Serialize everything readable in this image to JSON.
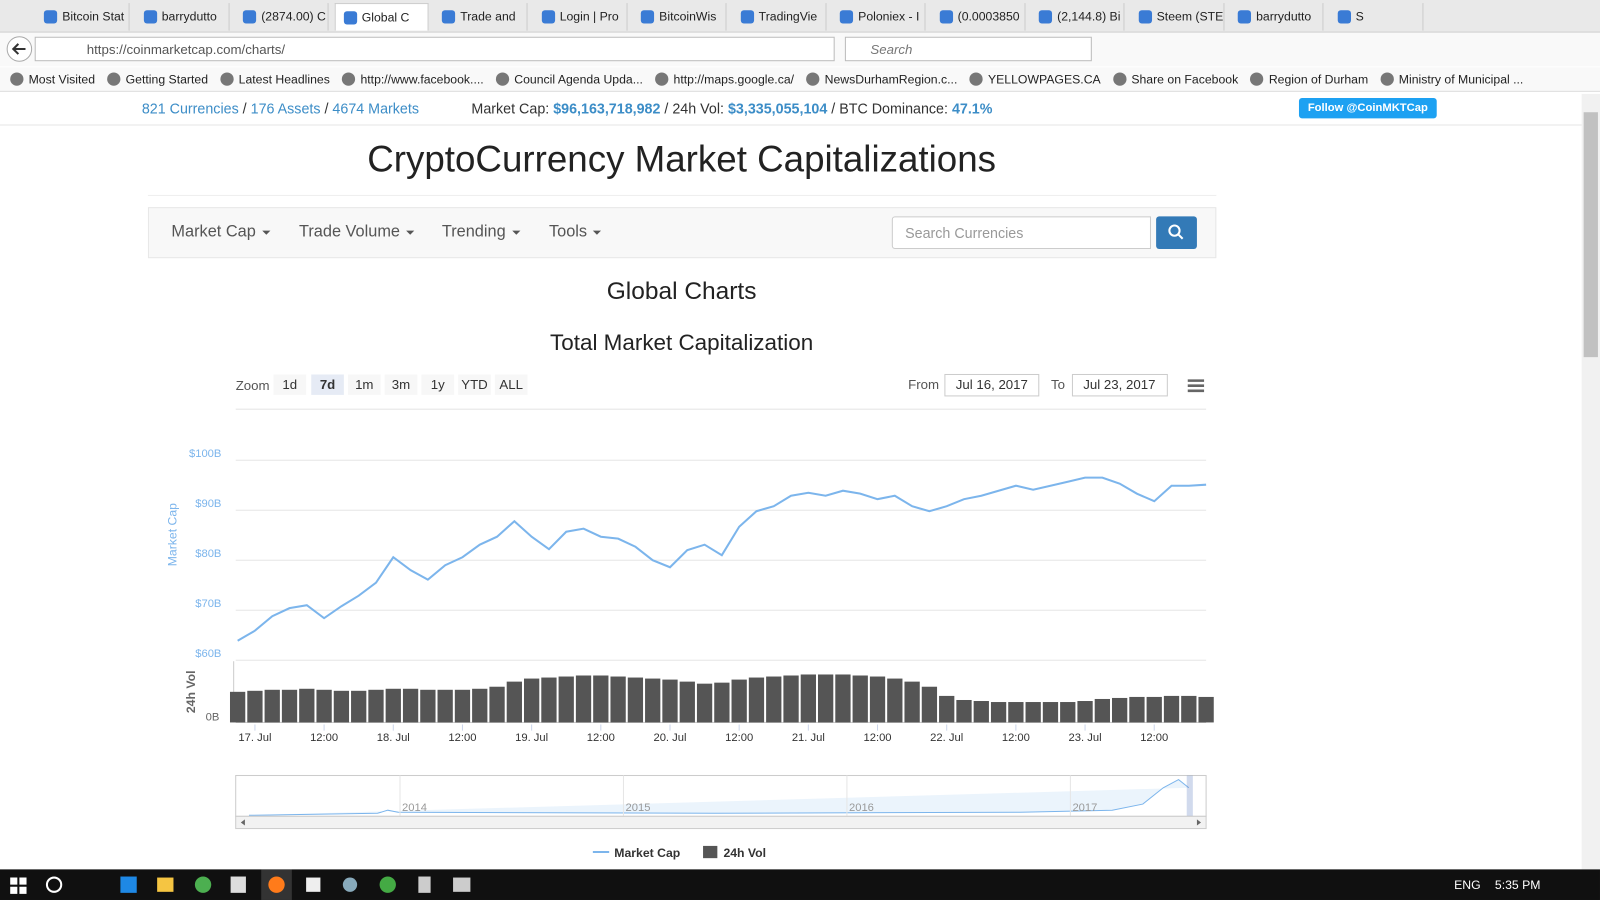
{
  "browser": {
    "tabs": [
      "Bitcoin Stat",
      "barrydutto",
      "(2874.00) C",
      "Global C",
      "Trade and",
      "Login | Pro",
      "BitcoinWis",
      "TradingVie",
      "Poloniex - I",
      "(0.0003850",
      "(2,144.8) Bi",
      "Steem (STE",
      "barrydutto",
      "S"
    ],
    "url": "https://coinmarketcap.com/charts/",
    "search_placeholder": "Search",
    "bookmarks": [
      "Most Visited",
      "Getting Started",
      "Latest Headlines",
      "http://www.facebook....",
      "Council Agenda Upda...",
      "http://maps.google.ca/",
      "NewsDurhamRegion.c...",
      "YELLOWPAGES.CA",
      "Share on Facebook",
      "Region of Durham",
      "Ministry of Municipal ..."
    ]
  },
  "stats": {
    "currencies": "821 Currencies",
    "assets": "176 Assets",
    "markets": "4674 Markets",
    "separator": "/",
    "market_cap_label": "Market Cap:",
    "market_cap": "$96,163,718,982",
    "vol_label": "24h Vol:",
    "vol": "$3,335,055,104",
    "dominance_label": "BTC Dominance:",
    "dominance": "47.1%",
    "follow": "Follow @CoinMKTCap"
  },
  "header": {
    "title": "CryptoCurrency Market Capitalizations"
  },
  "nav": {
    "items": [
      "Market Cap",
      "Trade Volume",
      "Trending",
      "Tools"
    ],
    "search_placeholder": "Search Currencies"
  },
  "page_title": "Global Charts",
  "chart_data": {
    "type": "line",
    "title": "Total Market Capitalization",
    "zoom_label": "Zoom",
    "zoom_buttons": [
      "1d",
      "7d",
      "1m",
      "3m",
      "1y",
      "YTD",
      "ALL"
    ],
    "zoom_selected": "7d",
    "from_label": "From",
    "from": "Jul 16, 2017",
    "to_label": "To",
    "to": "Jul 23, 2017",
    "ylabel": "Market Cap",
    "y2label": "24h Vol",
    "xlim": [
      "2017-07-16T20:40",
      "2017-07-23T21:00"
    ],
    "xticks": [
      {
        "value": "2017-07-17T00:00",
        "label": "17. Jul"
      },
      {
        "value": "2017-07-17T12:00",
        "label": "12:00"
      },
      {
        "value": "2017-07-18T00:00",
        "label": "18. Jul"
      },
      {
        "value": "2017-07-18T12:00",
        "label": "12:00"
      },
      {
        "value": "2017-07-19T00:00",
        "label": "19. Jul"
      },
      {
        "value": "2017-07-19T12:00",
        "label": "12:00"
      },
      {
        "value": "2017-07-20T00:00",
        "label": "20. Jul"
      },
      {
        "value": "2017-07-20T12:00",
        "label": "12:00"
      },
      {
        "value": "2017-07-21T00:00",
        "label": "21. Jul"
      },
      {
        "value": "2017-07-21T12:00",
        "label": "12:00"
      },
      {
        "value": "2017-07-22T00:00",
        "label": "22. Jul"
      },
      {
        "value": "2017-07-22T12:00",
        "label": "12:00"
      },
      {
        "value": "2017-07-23T00:00",
        "label": "23. Jul"
      },
      {
        "value": "2017-07-23T12:00",
        "label": "12:00"
      }
    ],
    "ylim": [
      60,
      100
    ],
    "yticks": [
      {
        "value": 60,
        "label": "$60B"
      },
      {
        "value": 70,
        "label": "$70B"
      },
      {
        "value": 80,
        "label": "$80B"
      },
      {
        "value": 90,
        "label": "$90B"
      },
      {
        "value": 100,
        "label": "$100B"
      }
    ],
    "y2lim": [
      0,
      6
    ],
    "y2ticks": [
      {
        "value": 0,
        "label": "0B"
      }
    ],
    "grid": true,
    "x": [
      "2017-07-16T21:00",
      "2017-07-17T00:00",
      "2017-07-17T03:00",
      "2017-07-17T06:00",
      "2017-07-17T09:00",
      "2017-07-17T12:00",
      "2017-07-17T15:00",
      "2017-07-17T18:00",
      "2017-07-17T21:00",
      "2017-07-18T00:00",
      "2017-07-18T03:00",
      "2017-07-18T06:00",
      "2017-07-18T09:00",
      "2017-07-18T12:00",
      "2017-07-18T15:00",
      "2017-07-18T18:00",
      "2017-07-18T21:00",
      "2017-07-19T00:00",
      "2017-07-19T03:00",
      "2017-07-19T06:00",
      "2017-07-19T09:00",
      "2017-07-19T12:00",
      "2017-07-19T15:00",
      "2017-07-19T18:00",
      "2017-07-19T21:00",
      "2017-07-20T00:00",
      "2017-07-20T03:00",
      "2017-07-20T06:00",
      "2017-07-20T09:00",
      "2017-07-20T12:00",
      "2017-07-20T15:00",
      "2017-07-20T18:00",
      "2017-07-20T21:00",
      "2017-07-21T00:00",
      "2017-07-21T03:00",
      "2017-07-21T06:00",
      "2017-07-21T09:00",
      "2017-07-21T12:00",
      "2017-07-21T15:00",
      "2017-07-21T18:00",
      "2017-07-21T21:00",
      "2017-07-22T00:00",
      "2017-07-22T03:00",
      "2017-07-22T06:00",
      "2017-07-22T09:00",
      "2017-07-22T12:00",
      "2017-07-22T15:00",
      "2017-07-22T18:00",
      "2017-07-22T21:00",
      "2017-07-23T00:00",
      "2017-07-23T03:00",
      "2017-07-23T06:00",
      "2017-07-23T09:00",
      "2017-07-23T12:00",
      "2017-07-23T15:00",
      "2017-07-23T18:00",
      "2017-07-23T21:00"
    ],
    "series": [
      {
        "name": "Market Cap",
        "color": "#7cb5ec",
        "values": [
          63.9,
          65.9,
          68.8,
          70.4,
          71.0,
          68.4,
          70.8,
          72.9,
          75.5,
          80.6,
          78.0,
          76.1,
          79.0,
          80.6,
          83.1,
          84.7,
          87.8,
          84.7,
          82.2,
          85.7,
          86.3,
          84.7,
          84.3,
          82.7,
          80.0,
          78.6,
          82.0,
          83.1,
          81.0,
          86.7,
          89.8,
          90.8,
          92.9,
          93.5,
          92.9,
          93.9,
          93.3,
          92.2,
          92.9,
          90.8,
          89.8,
          90.8,
          92.2,
          92.9,
          93.9,
          94.9,
          94.1,
          94.9,
          95.7,
          96.5,
          96.5,
          95.3,
          93.3,
          91.8,
          94.9,
          94.9,
          95.1
        ]
      },
      {
        "name": "24h Vol",
        "color": "#555555",
        "type": "bar",
        "axis": "y2",
        "values": [
          3.0,
          3.1,
          3.2,
          3.2,
          3.3,
          3.2,
          3.1,
          3.1,
          3.2,
          3.3,
          3.3,
          3.2,
          3.2,
          3.2,
          3.3,
          3.5,
          4.0,
          4.3,
          4.4,
          4.5,
          4.6,
          4.6,
          4.5,
          4.4,
          4.3,
          4.2,
          4.0,
          3.8,
          3.9,
          4.2,
          4.4,
          4.5,
          4.6,
          4.7,
          4.7,
          4.7,
          4.6,
          4.5,
          4.3,
          4.0,
          3.5,
          2.6,
          2.2,
          2.1,
          2.0,
          2.0,
          2.0,
          2.0,
          2.0,
          2.1,
          2.3,
          2.4,
          2.5,
          2.5,
          2.6,
          2.6,
          2.5
        ]
      }
    ],
    "navigator_labels": [
      "2014",
      "2015",
      "2016",
      "2017"
    ]
  },
  "taskbar": {
    "language": "ENG",
    "time": "5:35 PM"
  }
}
